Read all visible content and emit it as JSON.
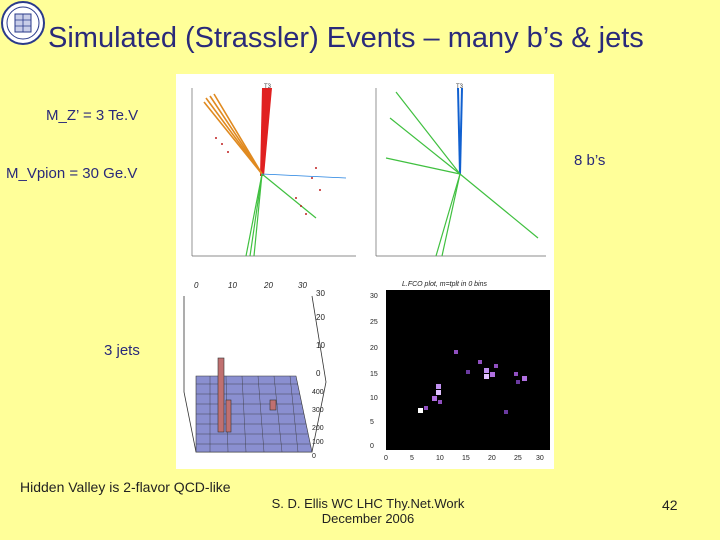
{
  "slide": {
    "title": "Simulated (Strassler) Events – many b’s & jets",
    "mz_label": "M_Z’ = 3 Te.V",
    "mvpion_label": "M_Vpion = 30 Ge.V",
    "bs_label": "8 b’s",
    "jets_label": "3 jets",
    "caption": "Hidden Valley is 2-flavor QCD-like",
    "author": "S. D. Ellis  WC LHC Thy.Net.Work",
    "date": "December 2006",
    "page_number": "42"
  },
  "colors": {
    "background": "#ffff99",
    "title": "#2a2a7a",
    "jet_red": "#e02020",
    "jet_orange": "#e08a20",
    "jet_green": "#40c040",
    "jet_blue": "#1060d0",
    "lego_grid": "#8a8fd0",
    "heatmap_bg": "#000000",
    "heatmap_cell": "#b070e0"
  },
  "panels": {
    "event_left": {
      "tick_label": "T3"
    },
    "event_right": {
      "tick_label": "T3"
    },
    "lego": {
      "top_ticks": [
        "0",
        "10",
        "20",
        "30"
      ],
      "right_ticks": [
        "30",
        "20",
        "10",
        "0"
      ],
      "phi_ticks": [
        "400",
        "300",
        "200",
        "100",
        "0"
      ]
    },
    "heatmap": {
      "title": "L.FCO plot, m=tplt in 0 bins",
      "x_ticks": [
        "0",
        "5",
        "10",
        "15",
        "20",
        "25",
        "30"
      ],
      "y_ticks": [
        "30",
        "25",
        "20",
        "15",
        "10",
        "5",
        "0"
      ]
    }
  }
}
